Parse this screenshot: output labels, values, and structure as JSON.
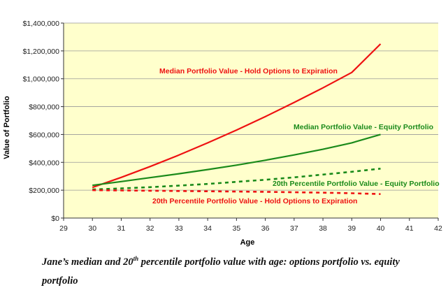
{
  "chart_data": {
    "type": "line",
    "xlabel": "Age",
    "ylabel": "Value of Portfolio",
    "xlim": [
      29,
      42
    ],
    "ylim": [
      0,
      1400000
    ],
    "x_ticks": [
      29,
      30,
      31,
      32,
      33,
      34,
      35,
      36,
      37,
      38,
      39,
      40,
      41,
      42
    ],
    "y_ticks": [
      0,
      200000,
      400000,
      600000,
      800000,
      1000000,
      1200000,
      1400000
    ],
    "y_tick_labels": [
      "$0",
      "$200,000",
      "$400,000",
      "$600,000",
      "$800,000",
      "$1,000,000",
      "$1,200,000",
      "$1,400,000"
    ],
    "plot_background": "#ffffcc",
    "grid": {
      "horizontal": true,
      "vertical": false,
      "color": "#999999"
    },
    "legend": "none",
    "series": [
      {
        "name": "Median Portfolio Value - Hold Options to Expiration",
        "color": "#ee1111",
        "style": "solid",
        "x": [
          30,
          31,
          32,
          33,
          34,
          35,
          36,
          37,
          38,
          39,
          40
        ],
        "y": [
          220000,
          292000,
          370000,
          452000,
          540000,
          632000,
          728000,
          830000,
          935000,
          1045000,
          1250000
        ]
      },
      {
        "name": "Median Portfolio Value - Equity Portfolio",
        "color": "#1a8a1a",
        "style": "solid",
        "x": [
          30,
          31,
          32,
          33,
          34,
          35,
          36,
          37,
          38,
          39,
          40
        ],
        "y": [
          235000,
          262000,
          290000,
          318000,
          348000,
          380000,
          415000,
          453000,
          494000,
          540000,
          600000
        ]
      },
      {
        "name": "20th Percentile Portfolio Value - Equity Portfolio",
        "color": "#1a8a1a",
        "style": "dashed",
        "x": [
          30,
          31,
          32,
          33,
          34,
          35,
          36,
          37,
          38,
          39,
          40
        ],
        "y": [
          205000,
          213000,
          222000,
          233000,
          245000,
          260000,
          275000,
          292000,
          312000,
          332000,
          355000
        ]
      },
      {
        "name": "20th Percentile Portfolio Value - Hold Options to Expiration",
        "color": "#ee1111",
        "style": "dashed",
        "x": [
          30,
          31,
          32,
          33,
          34,
          35,
          36,
          37,
          38,
          39,
          40
        ],
        "y": [
          200000,
          198000,
          196000,
          194000,
          192000,
          190000,
          188000,
          185000,
          182000,
          178000,
          172000
        ]
      }
    ]
  },
  "caption": {
    "part1": "Jane’s median and 20",
    "superscript": "th",
    "part2": " percentile portfolio value with age: options portfolio vs. equity portfolio"
  }
}
